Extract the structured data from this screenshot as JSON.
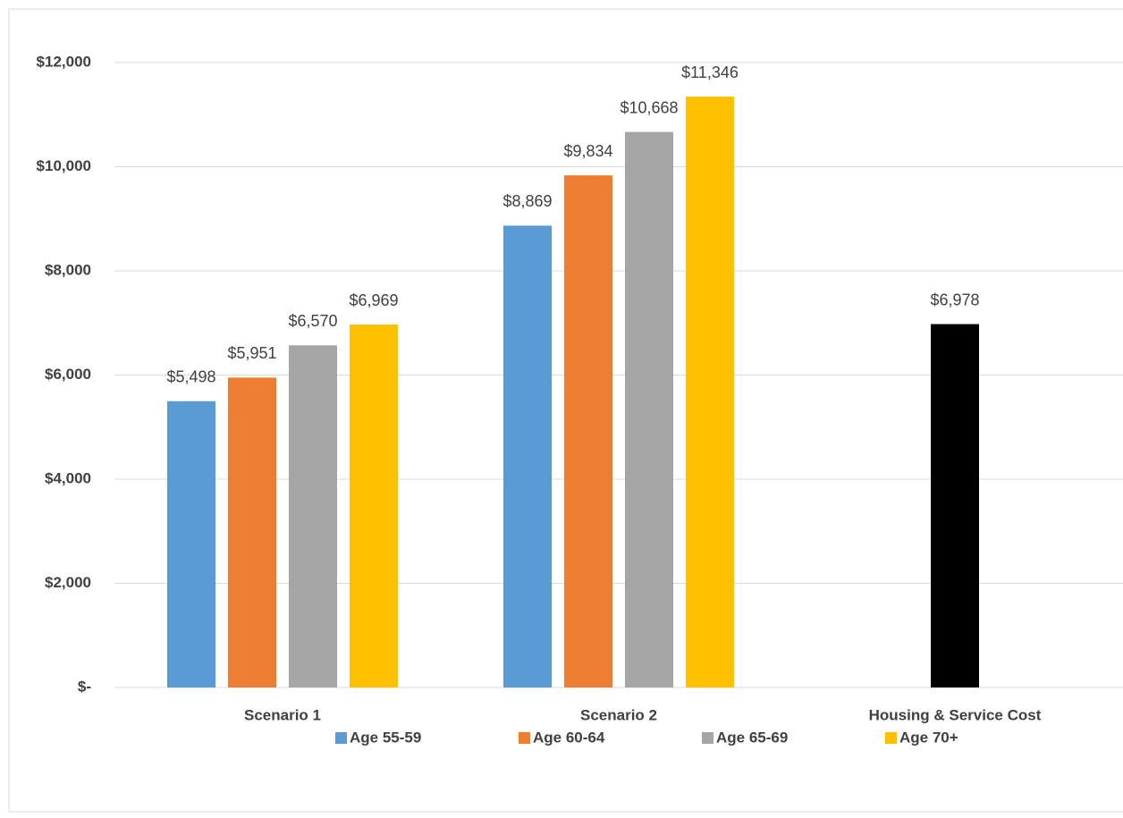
{
  "chart_data": {
    "type": "bar",
    "categories": [
      "Scenario 1",
      "Scenario 2",
      "Housing & Service Cost"
    ],
    "series": [
      {
        "name": "Age 55-59",
        "color": "#5b9bd5",
        "values": [
          5498,
          8869,
          null
        ],
        "value_labels": [
          "$5,498",
          "$8,869",
          null
        ]
      },
      {
        "name": "Age 60-64",
        "color": "#ed7d31",
        "values": [
          5951,
          9834,
          null
        ],
        "value_labels": [
          "$5,951",
          "$9,834",
          null
        ]
      },
      {
        "name": "Age 65-69",
        "color": "#a5a5a5",
        "values": [
          6570,
          10668,
          null
        ],
        "value_labels": [
          "$6,570",
          "$10,668",
          null
        ]
      },
      {
        "name": "Age 70+",
        "color": "#ffc000",
        "values": [
          6969,
          11346,
          null
        ],
        "value_labels": [
          "$6,969",
          "$11,346",
          null
        ]
      },
      {
        "color": "#000000",
        "values": [
          null,
          null,
          6978
        ],
        "value_labels": [
          null,
          null,
          "$6,978"
        ]
      }
    ],
    "ylim": [
      0,
      12000
    ],
    "yticks": [
      {
        "value": 0,
        "label": "$-"
      },
      {
        "value": 2000,
        "label": "$2,000"
      },
      {
        "value": 4000,
        "label": "$4,000"
      },
      {
        "value": 6000,
        "label": "$6,000"
      },
      {
        "value": 8000,
        "label": "$8,000"
      },
      {
        "value": 10000,
        "label": "$10,000"
      },
      {
        "value": 12000,
        "label": "$12,000"
      }
    ],
    "grid": true,
    "legend": "bottom"
  }
}
